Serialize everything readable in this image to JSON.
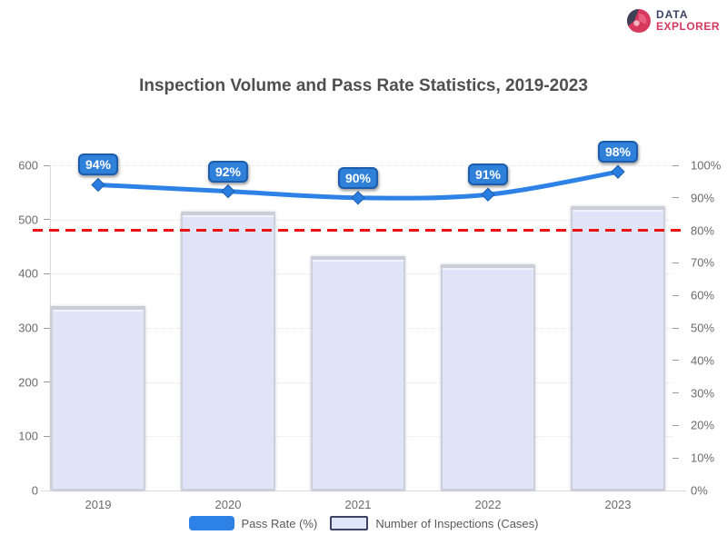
{
  "logo": {
    "line1": "DATA",
    "line2": "EXPLORER",
    "icon": "shutter-globe-icon",
    "color_primary": "#d6395d",
    "color_secondary": "#3c4566"
  },
  "chart_data": {
    "type": "bar",
    "title": "Inspection Volume and Pass Rate Statistics, 2019-2023",
    "categories": [
      "2019",
      "2020",
      "2021",
      "2022",
      "2023"
    ],
    "series": [
      {
        "name": "Number of Inspections (Cases)",
        "kind": "bar",
        "axis": "left",
        "values": [
          340,
          515,
          433,
          418,
          525
        ],
        "color": "#dfe4f7"
      },
      {
        "name": "Pass Rate (%)",
        "kind": "line",
        "axis": "right",
        "values": [
          94,
          92,
          90,
          91,
          98
        ],
        "point_labels": [
          "94%",
          "92%",
          "90%",
          "91%",
          "98%"
        ],
        "color": "#2e82e6"
      }
    ],
    "left_axis": {
      "min": 0,
      "max": 600,
      "tick_labels": [
        "600",
        "500",
        "400",
        "300",
        "200",
        "100",
        "0"
      ]
    },
    "right_axis": {
      "min": 0,
      "max": 100,
      "tick_labels": [
        "100%",
        "90%",
        "80%",
        "70%",
        "60%",
        "50%",
        "40%",
        "30%",
        "20%",
        "10%",
        "0%"
      ]
    },
    "reference_line": {
      "axis": "left",
      "value": 480,
      "color": "#ee1111",
      "style": "dashed"
    },
    "grid": "horizontal-dotted",
    "legend_position": "bottom"
  },
  "legend": {
    "items": [
      {
        "label": "Pass Rate (%)",
        "color": "#2e82e6"
      },
      {
        "label": "Number of Inspections (Cases)",
        "color": "#dfe4f7"
      }
    ]
  }
}
